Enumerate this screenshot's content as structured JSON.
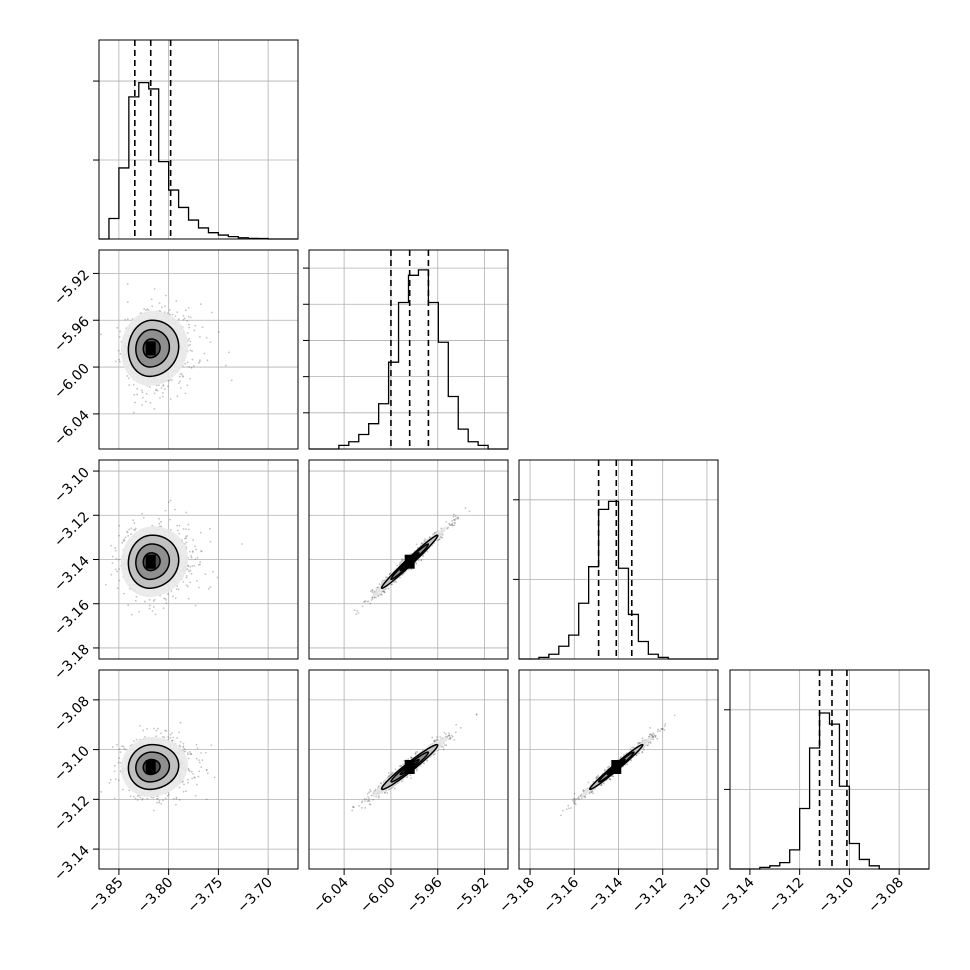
{
  "chart_data": {
    "type": "corner",
    "parameters": [
      {
        "range": [
          -3.87,
          -3.67
        ],
        "ticks": [
          -3.85,
          -3.8,
          -3.75,
          -3.7
        ],
        "tick_labels": [
          "−3.85",
          "−3.80",
          "−3.75",
          "−3.70"
        ],
        "quantiles": [
          -3.834,
          -3.818,
          -3.798
        ],
        "hist_bins": [
          0,
          0.13,
          0.45,
          0.9,
          0.99,
          0.95,
          0.49,
          0.31,
          0.2,
          0.12,
          0.07,
          0.04,
          0.025,
          0.015,
          0.008,
          0.004,
          0.003,
          0,
          0,
          0
        ],
        "hist_box_max": 1.26,
        "y_gridlines": [
          0.5,
          1.0
        ]
      },
      {
        "range": [
          -6.07,
          -5.9
        ],
        "ticks": [
          -6.04,
          -6.0,
          -5.96,
          -5.92
        ],
        "tick_labels": [
          "−6.04",
          "−6.00",
          "−5.96",
          "−5.92"
        ],
        "quantiles": [
          -6.0,
          -5.984,
          -5.968
        ],
        "hist_bins": [
          0,
          0,
          0,
          0.02,
          0.04,
          0.08,
          0.14,
          0.25,
          0.48,
          0.81,
          0.96,
          0.99,
          0.81,
          0.59,
          0.29,
          0.11,
          0.04,
          0.02,
          0,
          0
        ],
        "hist_box_max": 1.1,
        "y_gridlines": [
          0.2,
          0.4,
          0.6,
          0.8,
          1.0
        ]
      },
      {
        "range": [
          -3.185,
          -3.095
        ],
        "ticks": [
          -3.18,
          -3.16,
          -3.14,
          -3.12,
          -3.1
        ],
        "tick_labels": [
          "−3.18",
          "−3.16",
          "−3.14",
          "−3.12",
          "−3.10"
        ],
        "quantiles": [
          -3.149,
          -3.141,
          -3.134
        ],
        "hist_bins": [
          0,
          0,
          0.01,
          0.03,
          0.08,
          0.15,
          0.35,
          0.58,
          0.94,
          0.99,
          0.57,
          0.28,
          0.11,
          0.03,
          0.01,
          0,
          0,
          0,
          0,
          0
        ],
        "hist_box_max": 1.25,
        "y_gridlines": [
          0.5,
          1.0
        ]
      },
      {
        "range": [
          -3.148,
          -3.068
        ],
        "ticks": [
          -3.14,
          -3.12,
          -3.1,
          -3.08
        ],
        "tick_labels": [
          "−3.14",
          "−3.12",
          "−3.10",
          "−3.08"
        ],
        "quantiles": [
          -3.112,
          -3.107,
          -3.101
        ],
        "hist_bins": [
          0,
          0,
          0,
          0.01,
          0.02,
          0.04,
          0.12,
          0.38,
          0.76,
          0.98,
          0.91,
          0.52,
          0.16,
          0.06,
          0.02,
          0,
          0,
          0,
          0,
          0
        ],
        "hist_box_max": 1.25,
        "y_gridlines": [
          0.5,
          1.0
        ]
      }
    ],
    "grid": true,
    "pairs": [
      {
        "row": 1,
        "col": 0,
        "center": [
          -3.818,
          -5.984
        ],
        "sigma": [
          0.015,
          0.016
        ],
        "rho": 0.05
      },
      {
        "row": 2,
        "col": 0,
        "center": [
          -3.818,
          -3.141
        ],
        "sigma": [
          0.015,
          0.008
        ],
        "rho": 0.05
      },
      {
        "row": 2,
        "col": 1,
        "center": [
          -5.984,
          -3.141
        ],
        "sigma": [
          0.016,
          0.008
        ],
        "rho": 0.985
      },
      {
        "row": 3,
        "col": 0,
        "center": [
          -3.818,
          -3.107
        ],
        "sigma": [
          0.015,
          0.006
        ],
        "rho": 0.05
      },
      {
        "row": 3,
        "col": 1,
        "center": [
          -5.984,
          -3.107
        ],
        "sigma": [
          0.016,
          0.006
        ],
        "rho": 0.97
      },
      {
        "row": 3,
        "col": 2,
        "center": [
          -3.141,
          -3.107
        ],
        "sigma": [
          0.008,
          0.006
        ],
        "rho": 0.985
      }
    ],
    "contour_levels": [
      0.118,
      0.393,
      0.675,
      0.865
    ]
  }
}
